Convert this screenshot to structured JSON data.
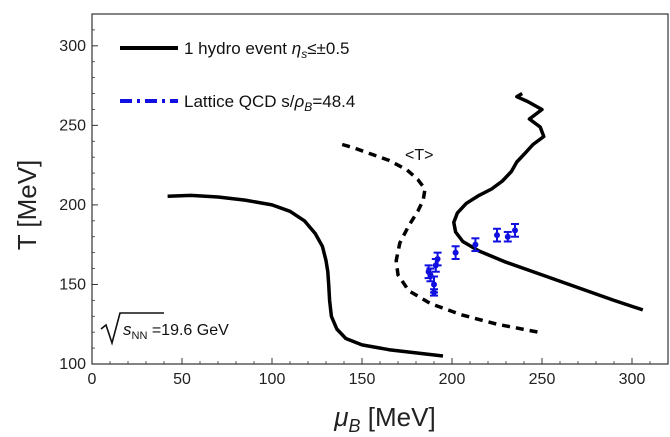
{
  "chart_data": {
    "type": "line",
    "xlabel": "μ_B [MeV]",
    "ylabel": "T [MeV]",
    "xlim": [
      0,
      320
    ],
    "ylim": [
      100,
      320
    ],
    "xticks": [
      0,
      50,
      100,
      150,
      200,
      250,
      300
    ],
    "yticks": [
      100,
      150,
      200,
      250,
      300
    ],
    "grid": false,
    "legend_position": "top-left",
    "legend": [
      {
        "label": "1 hydro event η_s≤±0.5",
        "style": "solid",
        "color": "#000000"
      },
      {
        "label": "Lattice QCD s/ρ_B=48.4",
        "style": "dashdot",
        "color": "#1010e0"
      }
    ],
    "annotations": [
      {
        "text": "<T>",
        "x": 184,
        "y": 216
      },
      {
        "text": "√s_NN =19.6 GeV",
        "x": 6,
        "y": 112
      }
    ],
    "series": [
      {
        "kind": "hydro-left",
        "style": "solid",
        "color": "#000000",
        "points": [
          [
            42,
            205.5
          ],
          [
            55,
            206
          ],
          [
            70,
            205
          ],
          [
            85,
            203
          ],
          [
            100,
            200
          ],
          [
            110,
            196
          ],
          [
            118,
            190
          ],
          [
            124,
            182
          ],
          [
            128,
            174
          ],
          [
            130,
            165
          ],
          [
            131,
            158
          ],
          [
            131.5,
            150
          ],
          [
            132,
            140
          ],
          [
            133,
            130
          ],
          [
            136,
            122
          ],
          [
            141,
            116
          ],
          [
            150,
            112
          ],
          [
            165,
            109
          ],
          [
            180,
            107
          ],
          [
            195,
            105
          ]
        ]
      },
      {
        "kind": "mean-T",
        "style": "dashed",
        "color": "#000000",
        "points": [
          [
            139,
            238
          ],
          [
            145,
            236
          ],
          [
            155,
            232
          ],
          [
            165,
            228
          ],
          [
            175,
            222
          ],
          [
            181,
            216
          ],
          [
            185,
            210
          ],
          [
            184,
            203
          ],
          [
            181,
            196
          ],
          [
            176,
            187
          ],
          [
            171,
            176
          ],
          [
            169,
            165
          ],
          [
            170,
            156
          ],
          [
            176,
            146
          ],
          [
            188,
            138
          ],
          [
            205,
            131
          ],
          [
            225,
            125
          ],
          [
            248,
            120
          ]
        ]
      },
      {
        "kind": "hydro-right",
        "style": "solid",
        "color": "#000000",
        "points": [
          [
            306,
            134
          ],
          [
            290,
            140
          ],
          [
            270,
            148
          ],
          [
            250,
            156
          ],
          [
            230,
            164
          ],
          [
            215,
            171
          ],
          [
            206,
            177
          ],
          [
            202,
            183
          ],
          [
            201,
            189
          ],
          [
            203,
            195
          ],
          [
            208,
            201
          ],
          [
            215,
            206
          ],
          [
            222,
            210
          ],
          [
            228,
            215
          ],
          [
            233,
            221
          ],
          [
            236,
            227
          ],
          [
            241,
            233
          ],
          [
            245,
            238
          ],
          [
            251,
            243
          ],
          [
            249,
            249
          ],
          [
            243,
            254
          ],
          [
            250,
            260
          ],
          [
            242,
            265
          ],
          [
            236,
            268
          ],
          [
            239,
            270
          ]
        ]
      },
      {
        "kind": "lattice-points",
        "style": "points-with-errorbars",
        "color": "#1010e0",
        "points": [
          [
            187,
            158,
            4
          ],
          [
            188,
            156,
            4
          ],
          [
            190,
            150,
            5
          ],
          [
            190,
            145,
            2
          ],
          [
            191,
            162,
            4
          ],
          [
            192,
            166,
            4
          ],
          [
            202,
            170,
            4
          ],
          [
            213,
            175,
            4
          ],
          [
            225,
            181,
            4
          ],
          [
            231,
            180,
            3
          ],
          [
            235,
            184,
            4
          ]
        ]
      }
    ]
  }
}
